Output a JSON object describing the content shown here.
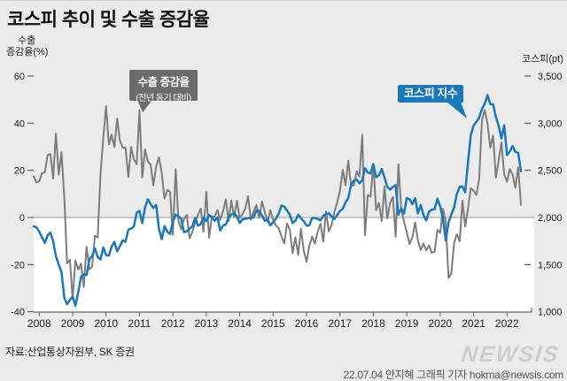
{
  "title": "코스피 추이 및 수출 증감율",
  "left_axis": {
    "label_line1": "수출",
    "label_line2": "증감율(%)",
    "ticks": [
      "60",
      "40",
      "20",
      "0",
      "-20",
      "-40"
    ]
  },
  "right_axis": {
    "label": "코스피(pt)",
    "ticks": [
      "3,500",
      "3,000",
      "2,500",
      "2,000",
      "1,500",
      "1,000"
    ]
  },
  "legend": {
    "export_label_line1": "수출 증감율",
    "export_label_line2": "(전년 동기 대비)",
    "kospi_label": "코스피 지수"
  },
  "footer": {
    "source": "자료:산업통상자원부, SK 증권",
    "logo": "NEWSIS",
    "credit": "22.07.04 안지혜 그래픽 기자 hokma@newsis.com"
  },
  "colors": {
    "background": "#ebebeb",
    "negative_region": "#ffffff",
    "zero_line": "#999999",
    "axis_line": "#666666",
    "tick_text": "#222222",
    "export_line": "#7c7c7c",
    "kospi_line": "#1878bc",
    "legend_export_bg": "#6b6b6b",
    "legend_kospi_bg": "#1878bc"
  },
  "chart_data": {
    "type": "line",
    "x_monthly_start": "2007-11",
    "x_monthly_end": "2022-06",
    "x_tick_years": [
      "2008",
      "2009",
      "2010",
      "2011",
      "2012",
      "2013",
      "2014",
      "2015",
      "2016",
      "2017",
      "2018",
      "2019",
      "2020",
      "2021",
      "2022"
    ],
    "left_ylim": [
      -40,
      60
    ],
    "right_ylim": [
      1000,
      3500
    ],
    "left_yticks": [
      60,
      40,
      20,
      0,
      -20,
      -40
    ],
    "right_yticks": [
      3500,
      3000,
      2500,
      2000,
      1500,
      1000
    ],
    "series": [
      {
        "name": "수출 증감율 (전년 동기 대비, %)",
        "axis": "left",
        "color": "#7c7c7c",
        "values": [
          17.5,
          14.8,
          15.4,
          18.8,
          19.1,
          26.4,
          26.9,
          16.5,
          35.6,
          18.2,
          27.7,
          8.5,
          -19.5,
          -17.9,
          -34.5,
          -18.3,
          -22.1,
          -19.6,
          -29.4,
          -12.4,
          -22.0,
          -20.9,
          -7.8,
          -8.5,
          18.1,
          33.7,
          47.1,
          31.0,
          35.1,
          29.9,
          41.9,
          32.4,
          29.6,
          29.6,
          17.2,
          29.9,
          24.6,
          22.6,
          45.5,
          16.9,
          28.9,
          23.7,
          22.5,
          13.6,
          21.7,
          25.5,
          18.8,
          8.0,
          11.7,
          10.8,
          -7.3,
          20.4,
          -1.5,
          -5.0,
          -0.6,
          1.1,
          -8.8,
          -6.2,
          -2.0,
          1.1,
          3.8,
          -6.0,
          10.9,
          -8.6,
          0.2,
          0.4,
          3.2,
          -1.0,
          2.6,
          7.7,
          -1.5,
          7.2,
          0.2,
          7.1,
          -0.2,
          1.4,
          3.7,
          9.0,
          -1.0,
          2.5,
          5.2,
          -0.2,
          6.8,
          2.3,
          -2.0,
          3.1,
          -1.0,
          -3.3,
          -4.6,
          -8.0,
          -11.0,
          -2.6,
          -5.2,
          -15.2,
          -8.4,
          -15.9,
          -4.8,
          -14.1,
          -18.8,
          -12.2,
          -8.1,
          -11.1,
          -6.0,
          -2.7,
          -10.3,
          2.6,
          -5.9,
          -3.2,
          2.3,
          6.4,
          11.2,
          20.2,
          13.6,
          24.1,
          13.4,
          13.6,
          19.5,
          17.3,
          35.0,
          -7.5,
          9.5,
          8.9,
          22.3,
          3.1,
          6.2,
          -1.5,
          13.2,
          -0.4,
          6.1,
          8.7,
          -8.1,
          22.5,
          3.6,
          -1.7,
          -6.2,
          -11.3,
          -8.4,
          -2.1,
          -9.8,
          -13.8,
          -11.1,
          -14.0,
          -11.9,
          -15.0,
          -14.5,
          -5.3,
          -6.6,
          3.6,
          -1.7,
          -25.6,
          -23.8,
          -10.8,
          -7.1,
          -10.1,
          7.1,
          -3.8,
          3.9,
          12.4,
          11.4,
          9.5,
          16.5,
          41.2,
          45.6,
          39.8,
          29.6,
          34.8,
          16.9,
          24.2,
          31.9,
          18.3,
          15.2,
          20.6,
          18.2,
          12.6,
          21.3,
          5.4
        ]
      },
      {
        "name": "코스피 지수 (pt)",
        "axis": "right",
        "color": "#1878bc",
        "values": [
          1906,
          1897,
          1850,
          1790,
          1730,
          1810,
          1840,
          1750,
          1590,
          1500,
          1420,
          1150,
          1080,
          1124,
          1162,
          1063,
          1206,
          1369,
          1396,
          1390,
          1557,
          1591,
          1673,
          1580,
          1555,
          1682,
          1602,
          1594,
          1692,
          1741,
          1641,
          1698,
          1759,
          1743,
          1872,
          1882,
          1904,
          2051,
          2069,
          1939,
          2106,
          2192,
          2142,
          2100,
          2133,
          1880,
          1769,
          1909,
          1847,
          1826,
          1955,
          2030,
          2014,
          1982,
          1843,
          1854,
          1881,
          1905,
          1996,
          1912,
          1932,
          1997,
          1961,
          2026,
          2005,
          1964,
          2001,
          1863,
          1914,
          1926,
          1997,
          2030,
          2045,
          2011,
          1941,
          1980,
          1986,
          1992,
          1995,
          2002,
          2076,
          2068,
          2020,
          1964,
          1981,
          1916,
          1949,
          1986,
          2041,
          2127,
          2115,
          2074,
          2030,
          1941,
          1963,
          2029,
          1992,
          1961,
          1912,
          1917,
          1996,
          1994,
          1983,
          1970,
          2016,
          2035,
          2044,
          2008,
          1983,
          2026,
          2068,
          2092,
          2160,
          2205,
          2347,
          2392,
          2403,
          2363,
          2394,
          2523,
          2476,
          2467,
          2566,
          2427,
          2446,
          2515,
          2423,
          2326,
          2295,
          2323,
          2343,
          2030,
          2097,
          2041,
          2205,
          2195,
          2141,
          2204,
          2042,
          2131,
          2025,
          1968,
          2063,
          2083,
          2088,
          2198,
          2119,
          1987,
          1755,
          1948,
          2030,
          2108,
          2249,
          2326,
          2327,
          2267,
          2591,
          2873,
          2976,
          3013,
          3061,
          3148,
          3204,
          3297,
          3202,
          3199,
          3069,
          2971,
          2839,
          2978,
          2663,
          2699,
          2758,
          2696,
          2686,
          2490
        ]
      }
    ]
  }
}
